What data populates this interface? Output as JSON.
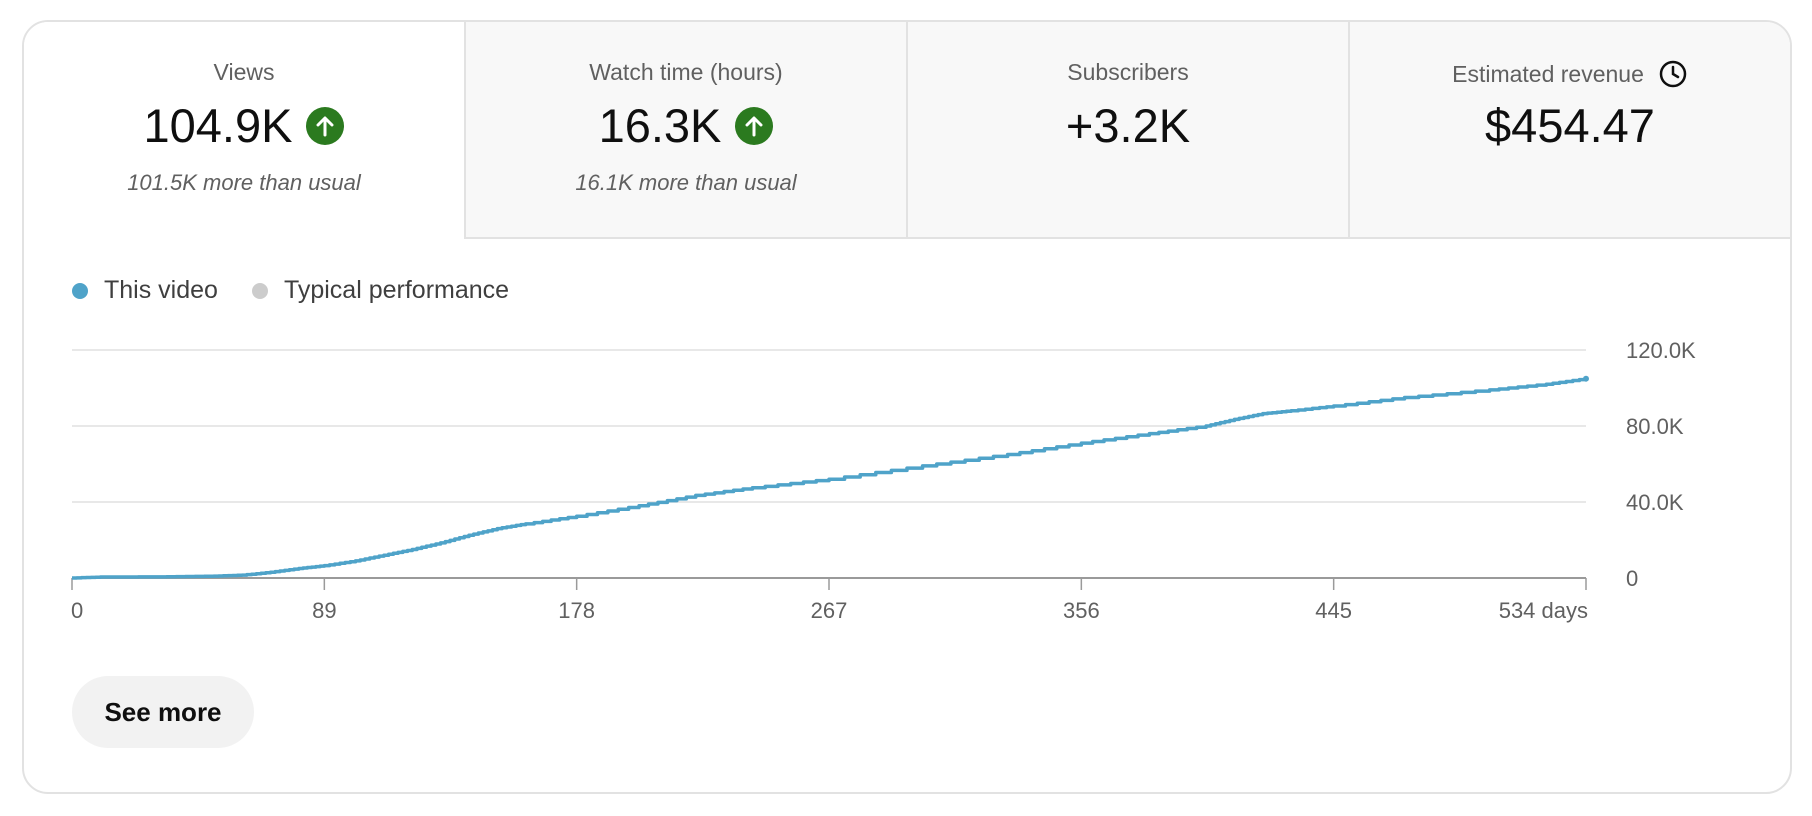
{
  "metrics": [
    {
      "label": "Views",
      "value": "104.9K",
      "note": "101.5K more than usual",
      "trend": "up"
    },
    {
      "label": "Watch time (hours)",
      "value": "16.3K",
      "note": "16.1K more than usual",
      "trend": "up"
    },
    {
      "label": "Subscribers",
      "value": "+3.2K",
      "note": "",
      "trend": "none"
    },
    {
      "label": "Estimated revenue",
      "value": "$454.47",
      "note": "",
      "trend": "none",
      "icon": "clock-icon"
    }
  ],
  "legend": {
    "this_video": "This video",
    "typical": "Typical performance",
    "this_video_color": "#4fa3c9",
    "typical_color": "#cccccc"
  },
  "see_more_label": "See more",
  "colors": {
    "up_badge": "#2b7a1f",
    "series_line": "#4fa3c9"
  },
  "chart_data": {
    "type": "line",
    "x_ticks": [
      "0",
      "89",
      "178",
      "267",
      "356",
      "445",
      "534 days"
    ],
    "y_ticks": [
      "0",
      "40.0K",
      "80.0K",
      "120.0K"
    ],
    "xlim": [
      0,
      534
    ],
    "ylim": [
      0,
      120000
    ],
    "series": [
      {
        "name": "This video",
        "x": [
          0,
          10,
          30,
          50,
          60,
          70,
          80,
          89,
          100,
          110,
          120,
          130,
          140,
          150,
          160,
          178,
          200,
          220,
          240,
          267,
          300,
          330,
          356,
          380,
          400,
          410,
          420,
          430,
          445,
          470,
          500,
          520,
          534
        ],
        "y": [
          0,
          500,
          600,
          1000,
          1500,
          3000,
          5000,
          6500,
          9000,
          12000,
          15000,
          18500,
          22500,
          26000,
          28500,
          32500,
          38000,
          43500,
          47500,
          52000,
          59000,
          65000,
          71000,
          76000,
          80000,
          83500,
          86500,
          88000,
          90500,
          95000,
          99000,
          102000,
          104900
        ]
      }
    ],
    "grid": true,
    "y_axis_position": "right",
    "legend_position": "top-left"
  }
}
